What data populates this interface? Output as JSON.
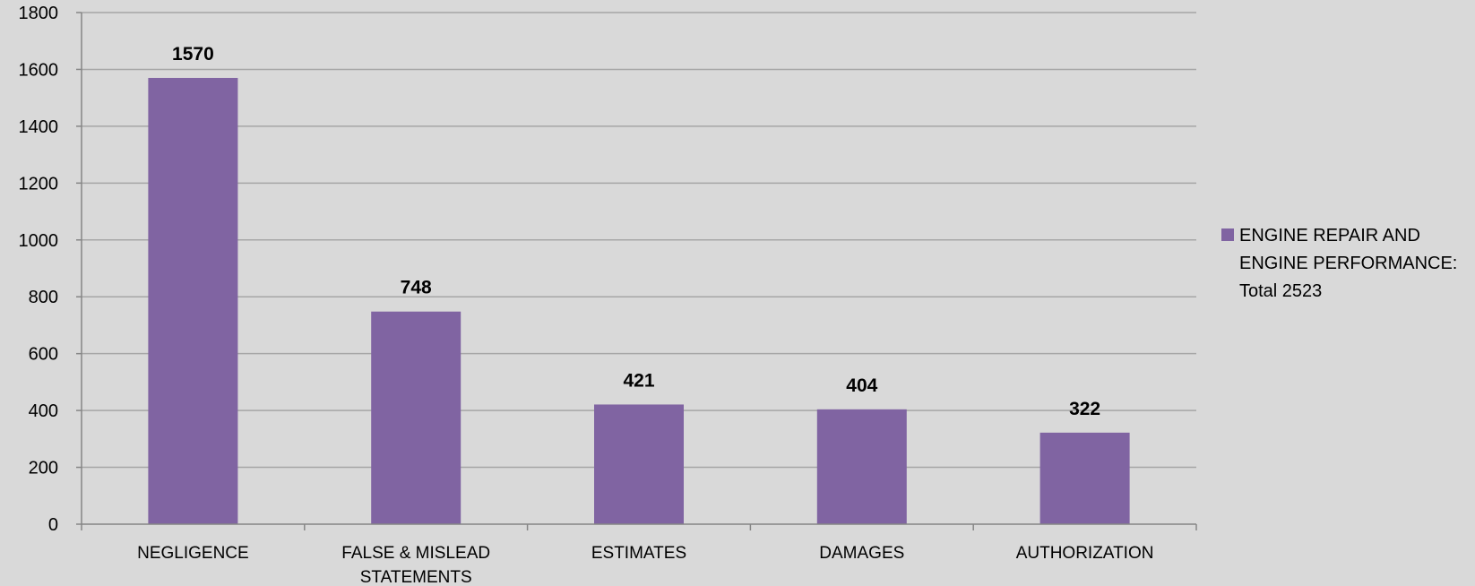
{
  "chart_data": {
    "type": "bar",
    "categories": [
      "NEGLIGENCE",
      "FALSE & MISLEAD STATEMENTS",
      "ESTIMATES",
      "DAMAGES",
      "AUTHORIZATION"
    ],
    "category_lines": [
      [
        "NEGLIGENCE"
      ],
      [
        "FALSE & MISLEAD",
        "STATEMENTS"
      ],
      [
        "ESTIMATES"
      ],
      [
        "DAMAGES"
      ],
      [
        "AUTHORIZATION"
      ]
    ],
    "series": [
      {
        "name": "ENGINE REPAIR AND ENGINE PERFORMANCE: Total 2523",
        "values": [
          1570,
          748,
          421,
          404,
          322
        ],
        "color": "#8064a2"
      }
    ],
    "data_labels": [
      "1570",
      "748",
      "421",
      "404",
      "322"
    ],
    "y_ticks": [
      "0",
      "200",
      "400",
      "600",
      "800",
      "1000",
      "1200",
      "1400",
      "1600",
      "1800"
    ],
    "ylim": [
      0,
      1800
    ],
    "grid": true,
    "legend_position": "right",
    "title": "",
    "xlabel": "",
    "ylabel": ""
  },
  "legend": {
    "text": "ENGINE REPAIR AND ENGINE PERFORMANCE: Total 2523"
  },
  "colors": {
    "background": "#d9d9d9",
    "bar": "#8064a2",
    "gridline": "#a6a6a6",
    "axis": "#868686"
  }
}
